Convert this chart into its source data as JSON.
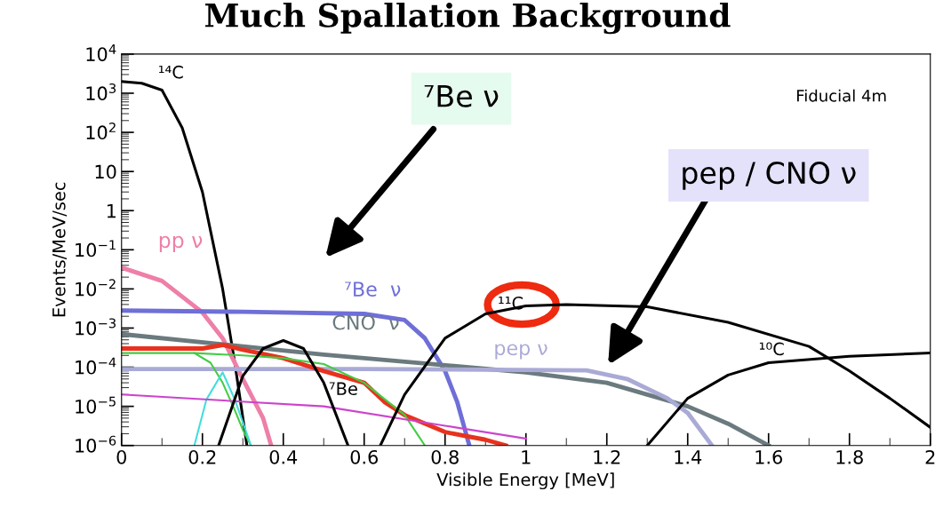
{
  "chart_data": {
    "type": "line",
    "title": "Much Spallation Background",
    "xlabel": "Visible Energy [MeV]",
    "ylabel": "Events/MeV/sec",
    "log": "y",
    "grid": false,
    "legend": false,
    "marker": "none",
    "line_style": "solid",
    "xlim": [
      0,
      2
    ],
    "xticks": [
      0,
      0.2,
      0.4,
      0.6,
      0.8,
      1,
      1.2,
      1.4,
      1.6,
      1.8,
      2
    ],
    "ylim": [
      1e-06,
      10000
    ],
    "yticks": [
      {
        "value": 1e-06,
        "label": "10$^{−6}$"
      },
      {
        "value": 1e-05,
        "label": "10$^{−5}$"
      },
      {
        "value": 0.0001,
        "label": "10$^{−4}$"
      },
      {
        "value": 0.001,
        "label": "10$^{−3}$"
      },
      {
        "value": 0.01,
        "label": "10$^{−2}$"
      },
      {
        "value": 0.1,
        "label": "10$^{−1}$"
      },
      1,
      10,
      {
        "value": 100,
        "label": "10$^{2}$"
      },
      {
        "value": 1000,
        "label": "10$^{3}$"
      },
      {
        "value": 10000,
        "label": "10$^{4}$"
      }
    ],
    "series": [
      {
        "name": "¹⁴C",
        "color": "#000000",
        "x": [
          0,
          0.05,
          0.1,
          0.15,
          0.2,
          0.25,
          0.28,
          0.31
        ],
        "values": [
          2000,
          1800,
          1200,
          130,
          3,
          0.01,
          0.00013,
          1e-06
        ]
      },
      {
        "name": "pp ν",
        "color": "#ee7fa8",
        "x": [
          0,
          0.1,
          0.2,
          0.25,
          0.3,
          0.35,
          0.37
        ],
        "values": [
          0.035,
          0.016,
          0.0025,
          0.00055,
          5e-05,
          5e-06,
          1e-06
        ]
      },
      {
        "name": "⁷Be  ν",
        "color": "#6f6fd8",
        "x": [
          0,
          0.3,
          0.6,
          0.7,
          0.75,
          0.8,
          0.83,
          0.86
        ],
        "values": [
          0.0028,
          0.0026,
          0.0023,
          0.0016,
          0.00055,
          8e-05,
          1.3e-05,
          1e-06
        ]
      },
      {
        "name": "CNO  ν",
        "color": "#6b7a7e",
        "x": [
          0,
          0.5,
          1.0,
          1.2,
          1.3,
          1.4,
          1.5,
          1.6
        ],
        "values": [
          0.0007,
          0.00021,
          7.4e-05,
          4e-05,
          2e-05,
          1e-05,
          3.6e-06,
          1e-06
        ]
      },
      {
        "name": "pep ν",
        "color": "#aaaad6",
        "x": [
          0,
          0.6,
          1.15,
          1.25,
          1.35,
          1.4,
          1.46
        ],
        "values": [
          9e-05,
          9e-05,
          8.3e-05,
          5e-05,
          1.6e-05,
          6.8e-06,
          1e-06
        ]
      },
      {
        "color": "#e8321e",
        "x": [
          0,
          0.2,
          0.25,
          0.3,
          0.4,
          0.5,
          0.6,
          0.65,
          0.7,
          0.8,
          0.9,
          0.95
        ],
        "values": [
          0.0003,
          0.0003,
          0.00037,
          0.00028,
          0.00017,
          8e-05,
          4e-05,
          1.3e-05,
          6e-06,
          2.2e-06,
          1.4e-06,
          1e-06
        ]
      },
      {
        "color": "#44cc44",
        "x": [
          0,
          0.18,
          0.3,
          0.4,
          0.5,
          0.6,
          0.7,
          0.75
        ],
        "values": [
          0.00023,
          0.00023,
          0.0002,
          0.00017,
          0.00012,
          4e-05,
          6e-06,
          1e-06
        ]
      },
      {
        "color": "#44cc44",
        "x": [
          0.18,
          0.22,
          0.25,
          0.28,
          0.3,
          0.32
        ],
        "values": [
          0.00023,
          0.00013,
          4e-05,
          8e-06,
          2.5e-06,
          1e-06
        ]
      },
      {
        "color": "#44dddd",
        "x": [
          0.18,
          0.21,
          0.25,
          0.28,
          0.32
        ],
        "values": [
          1e-06,
          1.5e-05,
          7.4e-05,
          1.5e-05,
          1e-06
        ]
      },
      {
        "color": "#cc44cc",
        "x": [
          0,
          0.5,
          0.8,
          1.0
        ],
        "values": [
          2e-05,
          1e-05,
          3.2e-06,
          1.5e-06
        ]
      },
      {
        "name": "⁷Be",
        "color": "#000000",
        "x": [
          0.24,
          0.3,
          0.35,
          0.4,
          0.45,
          0.5,
          0.56
        ],
        "values": [
          1e-06,
          6e-05,
          0.0003,
          0.00048,
          0.0003,
          4e-05,
          1e-06
        ]
      },
      {
        "name": "¹¹C",
        "color": "#000000",
        "x": [
          0.64,
          0.7,
          0.8,
          0.9,
          1.0,
          1.1,
          1.3,
          1.5,
          1.7,
          1.8,
          1.9,
          2.0
        ],
        "values": [
          1e-06,
          2e-05,
          0.00055,
          0.0023,
          0.0037,
          0.004,
          0.0035,
          0.0014,
          0.00034,
          8e-05,
          1.6e-05,
          2.9e-06
        ]
      },
      {
        "name": "¹⁰C",
        "color": "#000000",
        "x": [
          1.3,
          1.4,
          1.5,
          1.6,
          1.8,
          2.0
        ],
        "values": [
          1e-06,
          1.6e-05,
          6.3e-05,
          0.00013,
          0.00019,
          0.00023
        ]
      }
    ],
    "annotations": [
      "Fiducial 4m",
      "⁷Be ν",
      "pep / CNO ν"
    ]
  }
}
